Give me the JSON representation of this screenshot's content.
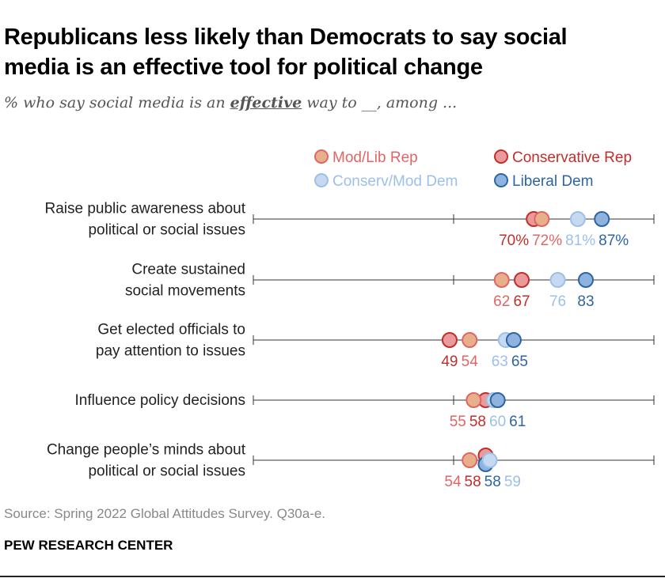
{
  "title_lines": [
    "Republicans less likely than Democrats to say social",
    "media is an effective tool for political change"
  ],
  "subtitle": {
    "before": "% who say social media is an ",
    "emphasis": "effective",
    "after": " way to __, among ..."
  },
  "source": "Source: Spring 2022 Global Attitudes Survey. Q30a-e.",
  "brand": "PEW RESEARCH CENTER",
  "chart_data": {
    "type": "dot",
    "xlim": [
      0,
      100
    ],
    "ticks": [
      0,
      50,
      100
    ],
    "legend_position": "top",
    "series": [
      {
        "name": "Mod/Lib Rep",
        "fill": "#e8b08a",
        "stroke": "#e06666",
        "text": "#e06666",
        "values": [
          72,
          62,
          54,
          55,
          54
        ]
      },
      {
        "name": "Conservative Rep",
        "fill": "#ea9a9a",
        "stroke": "#bf2f2c",
        "text": "#bf2f2c",
        "values": [
          70,
          67,
          49,
          58,
          58
        ]
      },
      {
        "name": "Conserv/Mod Dem",
        "fill": "#c6d9f0",
        "stroke": "#9cc0ea",
        "text": "#9cc0ea",
        "values": [
          81,
          76,
          63,
          60,
          59
        ]
      },
      {
        "name": "Liberal Dem",
        "fill": "#8fb3df",
        "stroke": "#2d65a3",
        "text": "#2d65a3",
        "values": [
          87,
          83,
          65,
          61,
          58
        ]
      }
    ],
    "categories": [
      [
        "Raise public awareness about",
        "political or social issues"
      ],
      [
        "Create sustained",
        "social movements"
      ],
      [
        "Get elected officials to",
        "pay attention to issues"
      ],
      [
        "Influence policy decisions"
      ],
      [
        "Change people’s minds about",
        "political or social issues"
      ]
    ],
    "percent_sign_row": 0
  }
}
